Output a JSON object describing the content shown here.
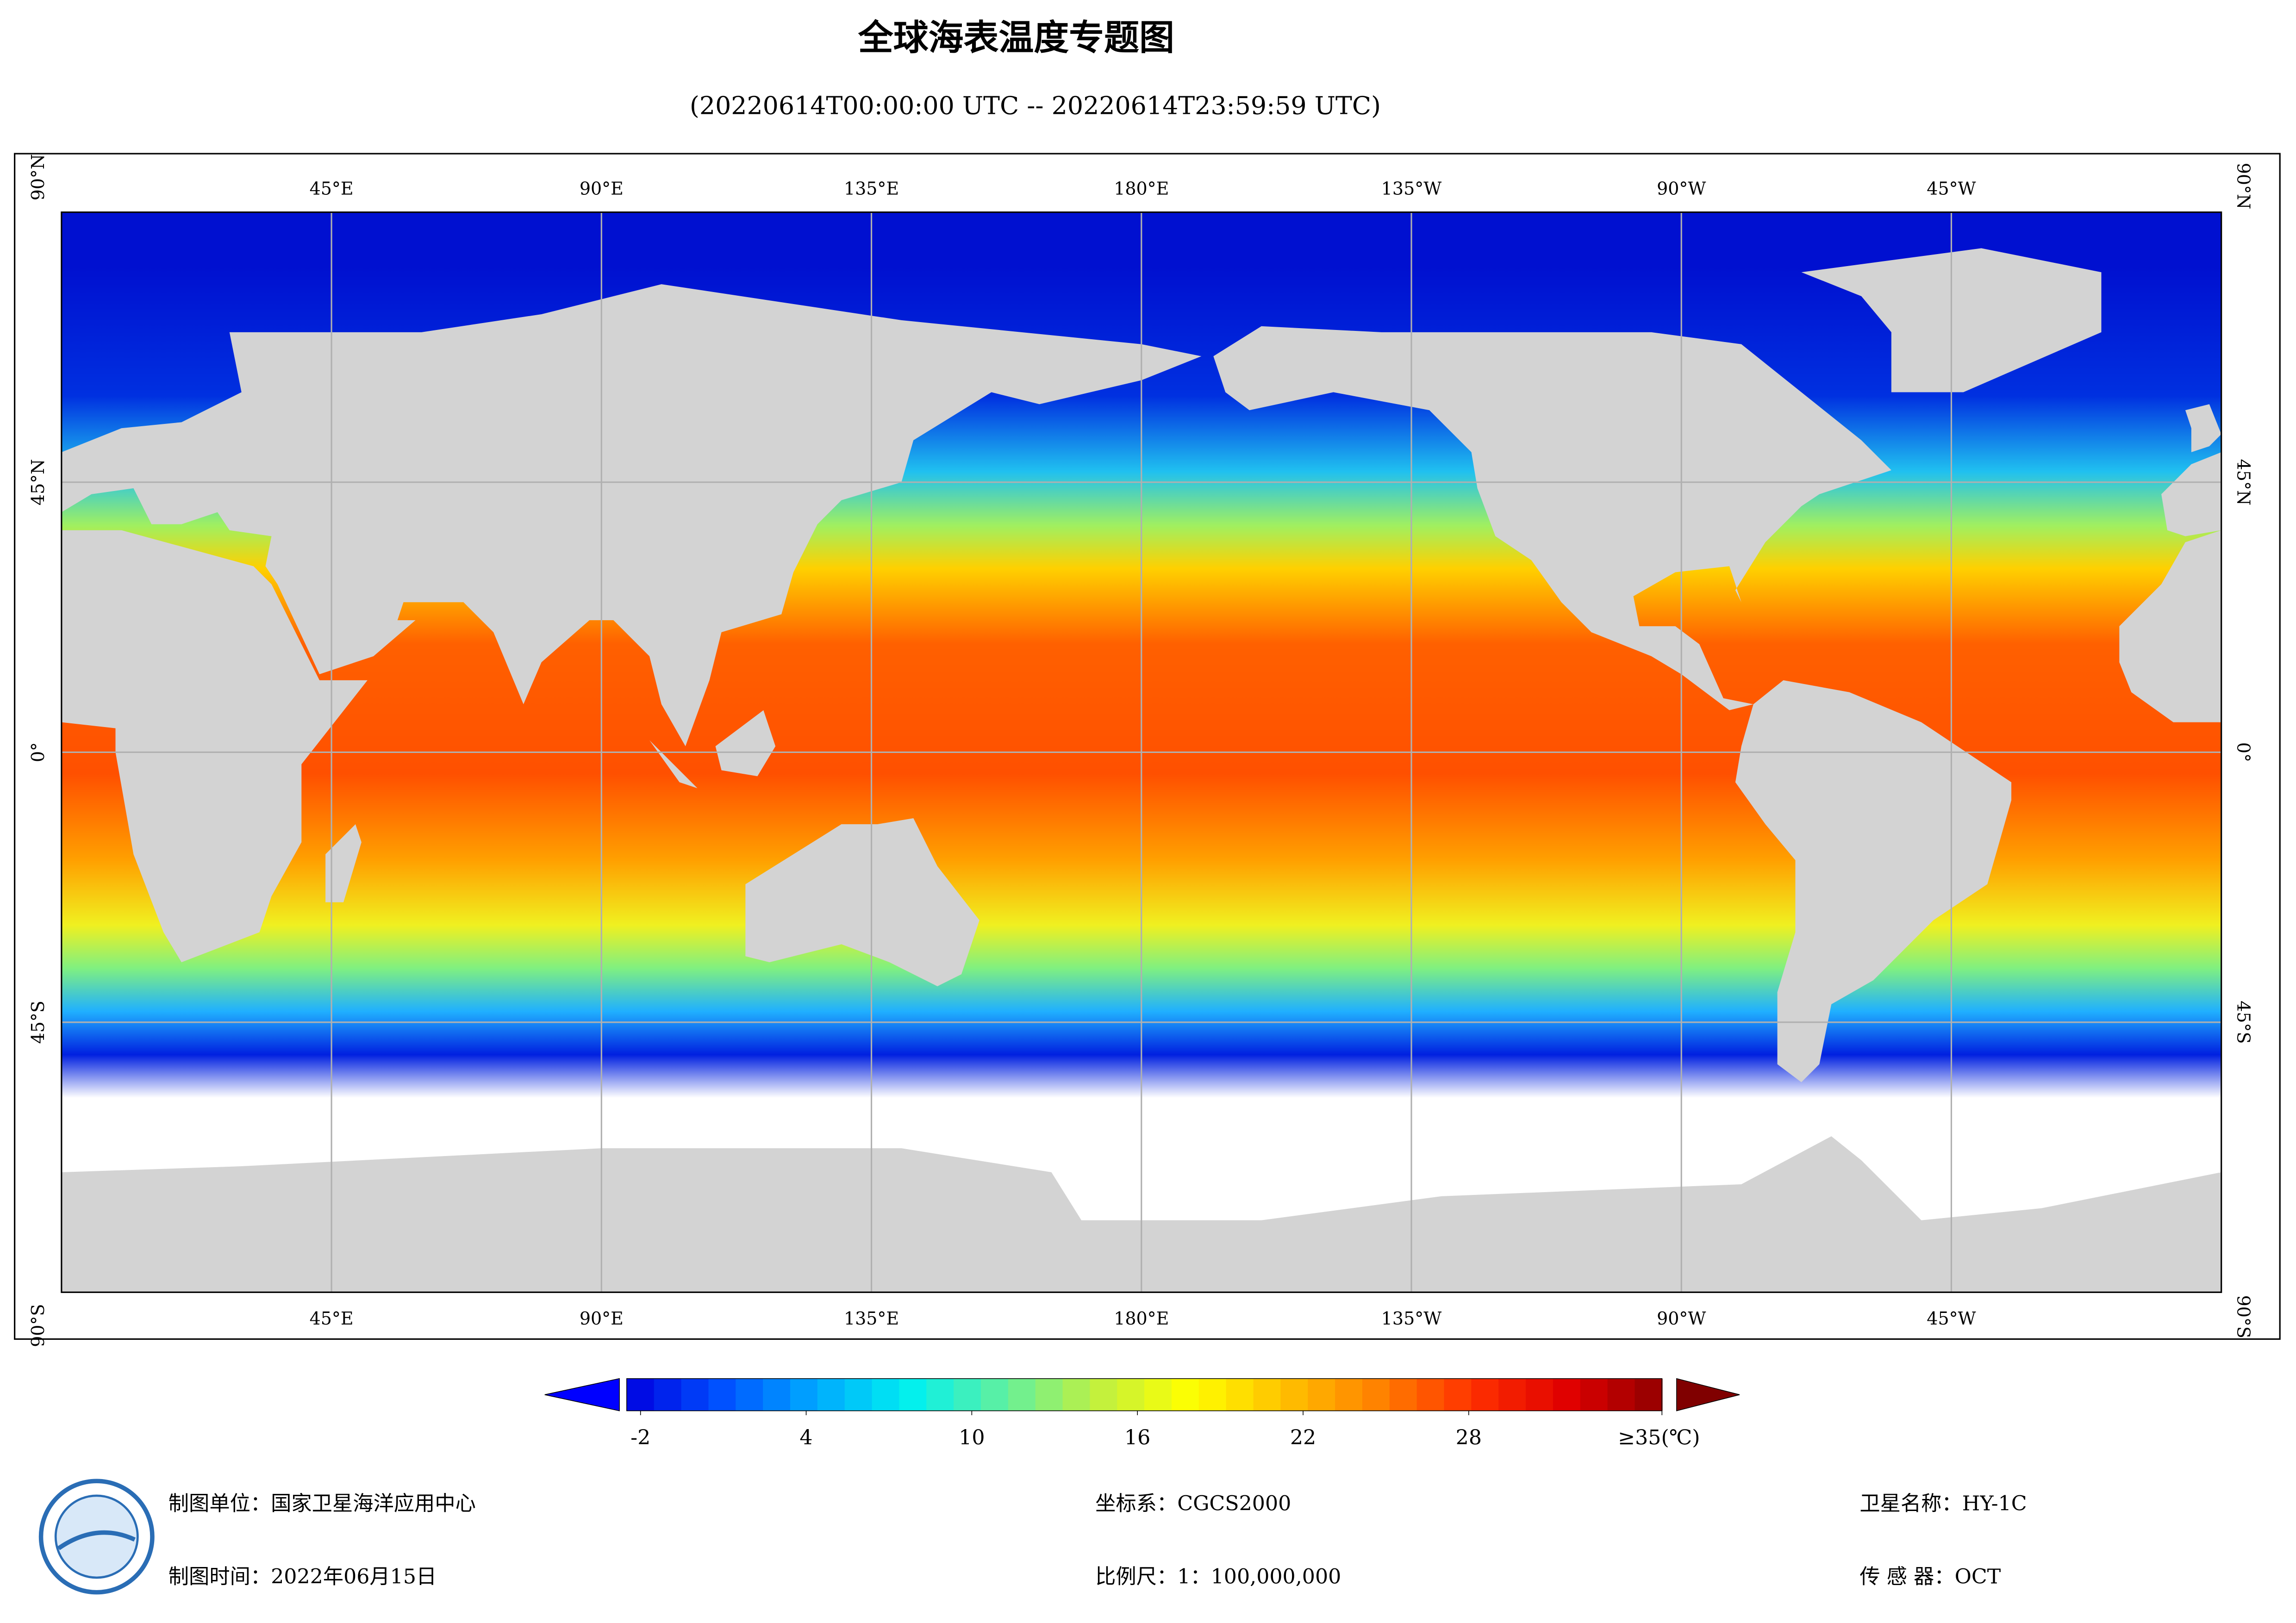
{
  "header": {
    "title": "全球海表温度专题图",
    "subtitle": "(20220614T00:00:00 UTC -- 20220614T23:59:59 UTC)"
  },
  "map": {
    "lon_labels": [
      "45°E",
      "90°E",
      "135°E",
      "180°E",
      "135°W",
      "90°W",
      "45°W"
    ],
    "lat_labels": [
      "90°N",
      "45°N",
      "0°",
      "45°S",
      "90°S"
    ]
  },
  "colorbar": {
    "clim": [
      -2.5,
      35
    ],
    "ticks": [
      -2,
      4,
      10,
      16,
      22,
      28,
      {
        "value": 35,
        "label": "≥35(℃)"
      }
    ],
    "colormap": [
      "#0000e0",
      "#0050ff",
      "#00a8ff",
      "#00f0f0",
      "#60f0a0",
      "#c0f040",
      "#ffff00",
      "#ffc000",
      "#ff8000",
      "#ff3000",
      "#e00000",
      "#900000"
    ],
    "under_color": "#0000ff",
    "over_color": "#800000"
  },
  "footer": {
    "producer": "制图单位：国家卫星海洋应用中心",
    "date": "制图时间：2022年06月15日",
    "crs": "坐标系：CGCS2000",
    "scale": "比例尺：1：100,000,000",
    "satellite": "卫星名称：HY-1C",
    "sensor": "传 感 器：OCT"
  }
}
